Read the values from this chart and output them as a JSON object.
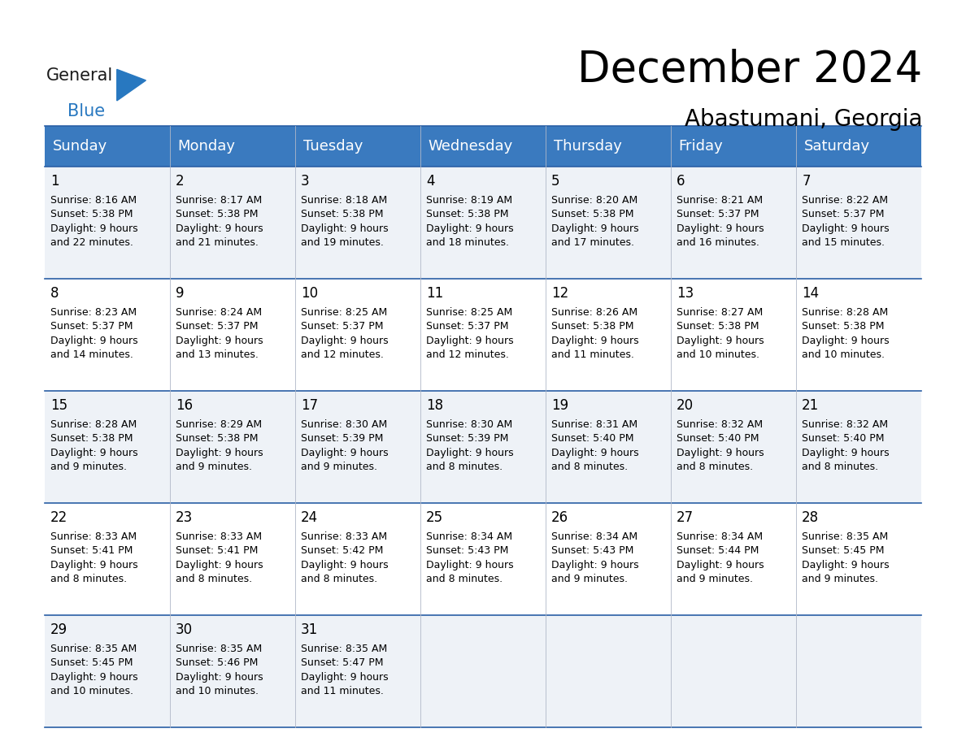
{
  "title": "December 2024",
  "subtitle": "Abastumani, Georgia",
  "header_bg": "#3a7abf",
  "header_text_color": "#ffffff",
  "row_bg_odd": "#eef2f7",
  "row_bg_even": "#ffffff",
  "border_color": "#2a5fa5",
  "day_headers": [
    "Sunday",
    "Monday",
    "Tuesday",
    "Wednesday",
    "Thursday",
    "Friday",
    "Saturday"
  ],
  "calendar_data": [
    [
      {
        "day": 1,
        "sunrise": "8:16 AM",
        "sunset": "5:38 PM",
        "daylight": "9 hours\nand 22 minutes."
      },
      {
        "day": 2,
        "sunrise": "8:17 AM",
        "sunset": "5:38 PM",
        "daylight": "9 hours\nand 21 minutes."
      },
      {
        "day": 3,
        "sunrise": "8:18 AM",
        "sunset": "5:38 PM",
        "daylight": "9 hours\nand 19 minutes."
      },
      {
        "day": 4,
        "sunrise": "8:19 AM",
        "sunset": "5:38 PM",
        "daylight": "9 hours\nand 18 minutes."
      },
      {
        "day": 5,
        "sunrise": "8:20 AM",
        "sunset": "5:38 PM",
        "daylight": "9 hours\nand 17 minutes."
      },
      {
        "day": 6,
        "sunrise": "8:21 AM",
        "sunset": "5:37 PM",
        "daylight": "9 hours\nand 16 minutes."
      },
      {
        "day": 7,
        "sunrise": "8:22 AM",
        "sunset": "5:37 PM",
        "daylight": "9 hours\nand 15 minutes."
      }
    ],
    [
      {
        "day": 8,
        "sunrise": "8:23 AM",
        "sunset": "5:37 PM",
        "daylight": "9 hours\nand 14 minutes."
      },
      {
        "day": 9,
        "sunrise": "8:24 AM",
        "sunset": "5:37 PM",
        "daylight": "9 hours\nand 13 minutes."
      },
      {
        "day": 10,
        "sunrise": "8:25 AM",
        "sunset": "5:37 PM",
        "daylight": "9 hours\nand 12 minutes."
      },
      {
        "day": 11,
        "sunrise": "8:25 AM",
        "sunset": "5:37 PM",
        "daylight": "9 hours\nand 12 minutes."
      },
      {
        "day": 12,
        "sunrise": "8:26 AM",
        "sunset": "5:38 PM",
        "daylight": "9 hours\nand 11 minutes."
      },
      {
        "day": 13,
        "sunrise": "8:27 AM",
        "sunset": "5:38 PM",
        "daylight": "9 hours\nand 10 minutes."
      },
      {
        "day": 14,
        "sunrise": "8:28 AM",
        "sunset": "5:38 PM",
        "daylight": "9 hours\nand 10 minutes."
      }
    ],
    [
      {
        "day": 15,
        "sunrise": "8:28 AM",
        "sunset": "5:38 PM",
        "daylight": "9 hours\nand 9 minutes."
      },
      {
        "day": 16,
        "sunrise": "8:29 AM",
        "sunset": "5:38 PM",
        "daylight": "9 hours\nand 9 minutes."
      },
      {
        "day": 17,
        "sunrise": "8:30 AM",
        "sunset": "5:39 PM",
        "daylight": "9 hours\nand 9 minutes."
      },
      {
        "day": 18,
        "sunrise": "8:30 AM",
        "sunset": "5:39 PM",
        "daylight": "9 hours\nand 8 minutes."
      },
      {
        "day": 19,
        "sunrise": "8:31 AM",
        "sunset": "5:40 PM",
        "daylight": "9 hours\nand 8 minutes."
      },
      {
        "day": 20,
        "sunrise": "8:32 AM",
        "sunset": "5:40 PM",
        "daylight": "9 hours\nand 8 minutes."
      },
      {
        "day": 21,
        "sunrise": "8:32 AM",
        "sunset": "5:40 PM",
        "daylight": "9 hours\nand 8 minutes."
      }
    ],
    [
      {
        "day": 22,
        "sunrise": "8:33 AM",
        "sunset": "5:41 PM",
        "daylight": "9 hours\nand 8 minutes."
      },
      {
        "day": 23,
        "sunrise": "8:33 AM",
        "sunset": "5:41 PM",
        "daylight": "9 hours\nand 8 minutes."
      },
      {
        "day": 24,
        "sunrise": "8:33 AM",
        "sunset": "5:42 PM",
        "daylight": "9 hours\nand 8 minutes."
      },
      {
        "day": 25,
        "sunrise": "8:34 AM",
        "sunset": "5:43 PM",
        "daylight": "9 hours\nand 8 minutes."
      },
      {
        "day": 26,
        "sunrise": "8:34 AM",
        "sunset": "5:43 PM",
        "daylight": "9 hours\nand 9 minutes."
      },
      {
        "day": 27,
        "sunrise": "8:34 AM",
        "sunset": "5:44 PM",
        "daylight": "9 hours\nand 9 minutes."
      },
      {
        "day": 28,
        "sunrise": "8:35 AM",
        "sunset": "5:45 PM",
        "daylight": "9 hours\nand 9 minutes."
      }
    ],
    [
      {
        "day": 29,
        "sunrise": "8:35 AM",
        "sunset": "5:45 PM",
        "daylight": "9 hours\nand 10 minutes."
      },
      {
        "day": 30,
        "sunrise": "8:35 AM",
        "sunset": "5:46 PM",
        "daylight": "9 hours\nand 10 minutes."
      },
      {
        "day": 31,
        "sunrise": "8:35 AM",
        "sunset": "5:47 PM",
        "daylight": "9 hours\nand 11 minutes."
      },
      null,
      null,
      null,
      null
    ]
  ],
  "logo_color_general": "#1a1a1a",
  "logo_color_blue": "#2878c0",
  "title_fontsize": 38,
  "subtitle_fontsize": 20,
  "header_fontsize": 13,
  "day_num_fontsize": 12,
  "cell_text_fontsize": 9
}
